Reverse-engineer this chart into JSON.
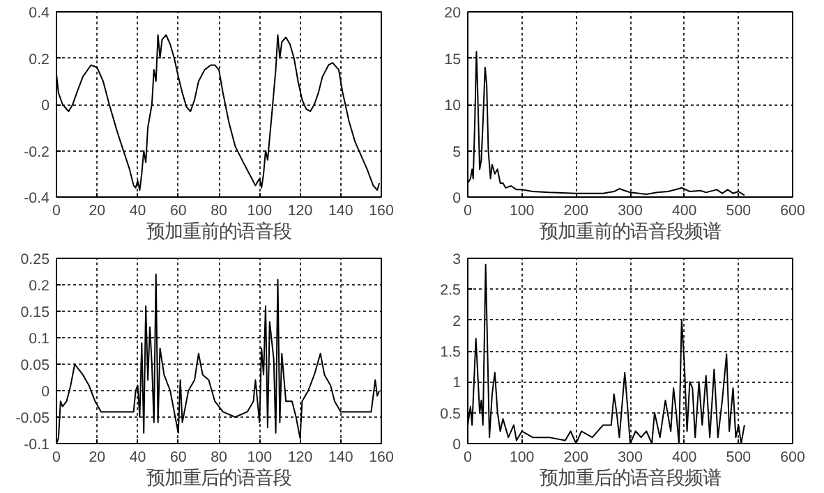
{
  "chart_data": [
    {
      "type": "line",
      "xlabel": "预加重前的语音段",
      "color": "#000000",
      "grid": true,
      "xlim": [
        0,
        160
      ],
      "ylim": [
        -0.4,
        0.4
      ],
      "xticks": [
        0,
        20,
        40,
        60,
        80,
        100,
        120,
        140,
        160
      ],
      "yticks": [
        -0.4,
        -0.2,
        0,
        0.2,
        0.4
      ],
      "x": [
        0,
        1,
        3,
        6,
        8,
        10,
        13,
        17,
        20,
        23,
        26,
        30,
        33,
        36,
        38,
        39,
        40,
        41,
        42,
        43,
        44,
        45,
        47,
        48,
        49,
        50,
        51,
        52,
        54,
        56,
        58,
        60,
        62,
        64,
        66,
        68,
        70,
        73,
        76,
        78,
        80,
        82,
        85,
        88,
        92,
        95,
        98,
        100,
        101,
        102,
        103,
        104,
        106,
        108,
        109,
        110,
        111,
        113,
        115,
        117,
        119,
        121,
        123,
        125,
        127,
        129,
        131,
        134,
        136,
        139,
        141,
        144,
        147,
        150,
        153,
        156,
        158,
        159
      ],
      "values": [
        0.13,
        0.05,
        0.0,
        -0.03,
        0.0,
        0.05,
        0.12,
        0.17,
        0.16,
        0.1,
        0.0,
        -0.12,
        -0.2,
        -0.28,
        -0.35,
        -0.36,
        -0.33,
        -0.37,
        -0.3,
        -0.2,
        -0.25,
        -0.1,
        0.0,
        0.15,
        0.1,
        0.3,
        0.2,
        0.28,
        0.3,
        0.26,
        0.2,
        0.12,
        0.05,
        -0.01,
        -0.03,
        0.02,
        0.1,
        0.15,
        0.17,
        0.17,
        0.15,
        0.05,
        -0.08,
        -0.18,
        -0.25,
        -0.3,
        -0.35,
        -0.32,
        -0.36,
        -0.3,
        -0.2,
        -0.24,
        -0.05,
        0.15,
        0.3,
        0.2,
        0.27,
        0.29,
        0.26,
        0.2,
        0.1,
        0.02,
        -0.02,
        -0.03,
        0.0,
        0.05,
        0.12,
        0.17,
        0.18,
        0.15,
        0.05,
        -0.07,
        -0.16,
        -0.22,
        -0.28,
        -0.35,
        -0.37,
        -0.34
      ]
    },
    {
      "type": "line",
      "xlabel": "预加重前的语音段频谱",
      "color": "#000000",
      "grid": true,
      "xlim": [
        0,
        600
      ],
      "ylim": [
        0,
        20
      ],
      "xticks": [
        0,
        100,
        200,
        300,
        400,
        500,
        600
      ],
      "yticks": [
        0,
        5,
        10,
        15,
        20
      ],
      "x": [
        0,
        5,
        8,
        10,
        13,
        16,
        18,
        22,
        25,
        28,
        32,
        35,
        38,
        42,
        45,
        50,
        55,
        60,
        65,
        70,
        80,
        90,
        100,
        120,
        150,
        200,
        250,
        270,
        280,
        290,
        300,
        330,
        350,
        370,
        390,
        395,
        410,
        430,
        440,
        460,
        470,
        480,
        490,
        500,
        511
      ],
      "values": [
        1.5,
        2,
        3,
        2,
        8,
        15.7,
        12,
        3,
        4,
        8,
        14,
        12,
        5,
        2,
        3.5,
        2.5,
        3,
        1.5,
        1.5,
        1,
        1.2,
        0.8,
        0.8,
        0.6,
        0.5,
        0.4,
        0.4,
        0.6,
        0.9,
        0.7,
        0.5,
        0.3,
        0.5,
        0.6,
        0.9,
        1,
        0.6,
        0.7,
        0.5,
        0.8,
        0.4,
        0.8,
        0.4,
        0.6,
        0.2
      ]
    },
    {
      "type": "line",
      "xlabel": "预加重后的语音段",
      "color": "#000000",
      "grid": true,
      "xlim": [
        0,
        160
      ],
      "ylim": [
        -0.1,
        0.25
      ],
      "xticks": [
        0,
        20,
        40,
        60,
        80,
        100,
        120,
        140,
        160
      ],
      "yticks": [
        -0.1,
        -0.05,
        0,
        0.05,
        0.1,
        0.15,
        0.2,
        0.25
      ],
      "x": [
        0,
        1,
        2,
        3,
        5,
        7,
        9,
        11,
        13,
        16,
        19,
        22,
        25,
        30,
        35,
        38,
        39,
        40,
        41,
        42,
        43,
        44,
        45,
        46,
        47,
        48,
        49,
        50,
        51,
        53,
        56,
        58,
        60,
        61,
        62,
        65,
        68,
        70,
        72,
        75,
        78,
        82,
        88,
        94,
        97,
        98,
        100,
        101,
        102,
        103,
        104,
        105,
        107,
        108,
        109,
        110,
        111,
        113,
        116,
        118,
        120,
        121,
        124,
        127,
        130,
        132,
        135,
        137,
        140,
        145,
        150,
        155,
        157,
        158,
        159
      ],
      "values": [
        -0.1,
        -0.09,
        -0.02,
        -0.03,
        -0.02,
        0.01,
        0.05,
        0.04,
        0.03,
        0.01,
        -0.02,
        -0.04,
        -0.04,
        -0.04,
        -0.04,
        -0.04,
        0.0,
        0.01,
        -0.05,
        0.09,
        -0.08,
        0.16,
        0.02,
        0.12,
        0.05,
        -0.06,
        0.22,
        -0.06,
        0.08,
        0.03,
        0.0,
        -0.04,
        -0.08,
        0.02,
        -0.06,
        0.0,
        0.02,
        0.07,
        0.03,
        0.02,
        -0.02,
        -0.04,
        -0.05,
        -0.04,
        -0.02,
        0.02,
        -0.06,
        0.08,
        0.03,
        0.16,
        -0.07,
        0.13,
        0.06,
        -0.08,
        0.21,
        -0.06,
        0.07,
        -0.02,
        -0.02,
        -0.05,
        -0.09,
        -0.02,
        0.0,
        0.03,
        0.07,
        0.03,
        0.01,
        -0.02,
        -0.04,
        -0.04,
        -0.04,
        -0.04,
        0.02,
        -0.01,
        0.0
      ]
    },
    {
      "type": "line",
      "xlabel": "预加重后的语音段频谱",
      "color": "#000000",
      "grid": true,
      "xlim": [
        0,
        600
      ],
      "ylim": [
        0,
        3
      ],
      "xticks": [
        0,
        100,
        200,
        300,
        400,
        500,
        600
      ],
      "yticks": [
        0,
        0.5,
        1,
        1.5,
        2,
        2.5,
        3
      ],
      "x": [
        0,
        5,
        8,
        15,
        18,
        22,
        25,
        28,
        33,
        36,
        40,
        45,
        50,
        55,
        60,
        65,
        75,
        85,
        90,
        100,
        120,
        150,
        180,
        190,
        200,
        210,
        230,
        250,
        265,
        270,
        275,
        280,
        290,
        295,
        300,
        310,
        320,
        330,
        340,
        345,
        355,
        365,
        375,
        380,
        385,
        390,
        395,
        400,
        405,
        410,
        415,
        420,
        427,
        433,
        440,
        447,
        455,
        462,
        470,
        478,
        483,
        490,
        495,
        500,
        505,
        511
      ],
      "values": [
        0.3,
        0.6,
        0.3,
        1.7,
        1.2,
        0.5,
        0.7,
        0.3,
        2.9,
        1.7,
        0.1,
        0.8,
        1.15,
        0.5,
        0.2,
        0.4,
        0.1,
        0.3,
        0.05,
        0.2,
        0.1,
        0.1,
        0.05,
        0.2,
        0.0,
        0.2,
        0.1,
        0.3,
        0.3,
        0.8,
        0.5,
        0.1,
        1.15,
        0.6,
        0.0,
        0.2,
        0.1,
        0.2,
        0.0,
        0.5,
        0.1,
        0.7,
        0.2,
        0.9,
        0.5,
        0.0,
        2.0,
        1.3,
        0.2,
        1.0,
        0.9,
        0.1,
        1.0,
        0.3,
        1.1,
        0.1,
        1.2,
        0.1,
        0.7,
        1.45,
        0.2,
        0.9,
        0.1,
        0.3,
        0.0,
        0.3
      ]
    }
  ]
}
